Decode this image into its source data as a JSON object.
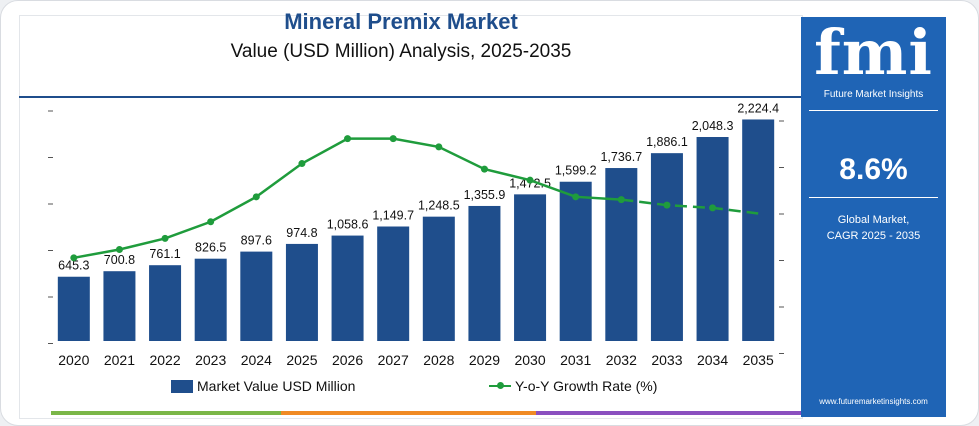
{
  "header": {
    "title": "Mineral Premix Market",
    "subtitle": "Value (USD Million) Analysis, 2025-2035"
  },
  "side_panel": {
    "logo_text": "fmi",
    "logo_subtitle": "Future Market Insights",
    "cagr_value": "8.6%",
    "cagr_label_line1": "Global Market,",
    "cagr_label_line2": "CAGR 2025 - 2035",
    "website": "www.futuremarketinsights.com",
    "background_color": "#1f64b5"
  },
  "legend": {
    "bar_label": "Market Value USD Million",
    "line_label": "Y-o-Y Growth Rate (%)"
  },
  "chart_data": {
    "type": "bar",
    "categories": [
      "2020",
      "2021",
      "2022",
      "2023",
      "2024",
      "2025",
      "2026",
      "2027",
      "2028",
      "2029",
      "2030",
      "2031",
      "2032",
      "2033",
      "2034",
      "2035"
    ],
    "series": [
      {
        "name": "Market Value USD Million",
        "type": "bar",
        "color": "#1f4e8c",
        "values": [
          645.3,
          700.8,
          761.1,
          826.5,
          897.6,
          974.8,
          1058.6,
          1149.7,
          1248.5,
          1355.9,
          1472.5,
          1599.2,
          1736.7,
          1886.1,
          2048.3,
          2224.4
        ],
        "labels": [
          "645.3",
          "700.8",
          "761.1",
          "826.5",
          "897.6",
          "974.8",
          "1,058.6",
          "1,149.7",
          "1,248.5",
          "1,355.9",
          "1,472.5",
          "1,599.2",
          "1,736.7",
          "1,886.1",
          "2,048.3",
          "2,224.4"
        ]
      },
      {
        "name": "Y-o-Y Growth Rate (%)",
        "type": "line",
        "color": "#1f9c3c",
        "axis": "secondary",
        "values": [
          8.0,
          8.3,
          8.7,
          9.3,
          10.2,
          11.4,
          12.3,
          12.3,
          12.0,
          11.2,
          10.8,
          10.2,
          10.1,
          9.9,
          9.8,
          9.6
        ]
      }
    ],
    "ylim": [
      0,
      2450
    ],
    "y2lim": [
      5,
      13.8
    ],
    "grid": false,
    "legend_position": "bottom"
  }
}
